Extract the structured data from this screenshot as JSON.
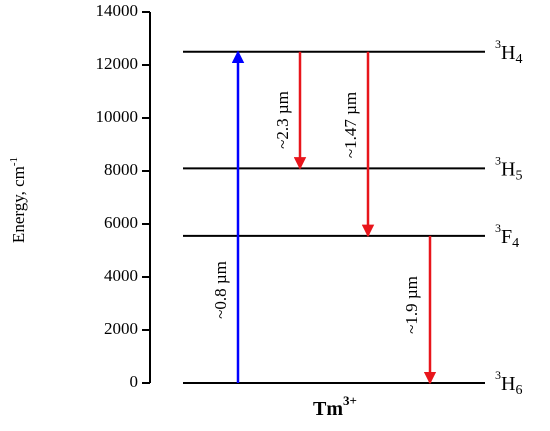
{
  "chart_data": {
    "type": "energy-level",
    "title": "Tm",
    "title_sup": "3+",
    "ylabel": "Energy, cm",
    "ylabel_sup": "-1",
    "ylim": [
      0,
      14000
    ],
    "yticks": [
      0,
      2000,
      4000,
      6000,
      8000,
      10000,
      12000,
      14000
    ],
    "levels": [
      {
        "sup": "3",
        "name": "H",
        "sub": "4",
        "energy": 12500
      },
      {
        "sup": "3",
        "name": "H",
        "sub": "5",
        "energy": 8100
      },
      {
        "sup": "3",
        "name": "F",
        "sub": "4",
        "energy": 5550
      },
      {
        "sup": "3",
        "name": "H",
        "sub": "6",
        "energy": 0
      }
    ],
    "transitions": [
      {
        "from": 3,
        "to": 0,
        "label": "~0.8 µm",
        "color": "#0000ff"
      },
      {
        "from": 0,
        "to": 1,
        "label": "~2.3 µm",
        "color": "#e8151b"
      },
      {
        "from": 0,
        "to": 2,
        "label": "~1.47 µm",
        "color": "#e8151b"
      },
      {
        "from": 2,
        "to": 3,
        "label": "~1.9 µm",
        "color": "#e8151b"
      }
    ]
  }
}
